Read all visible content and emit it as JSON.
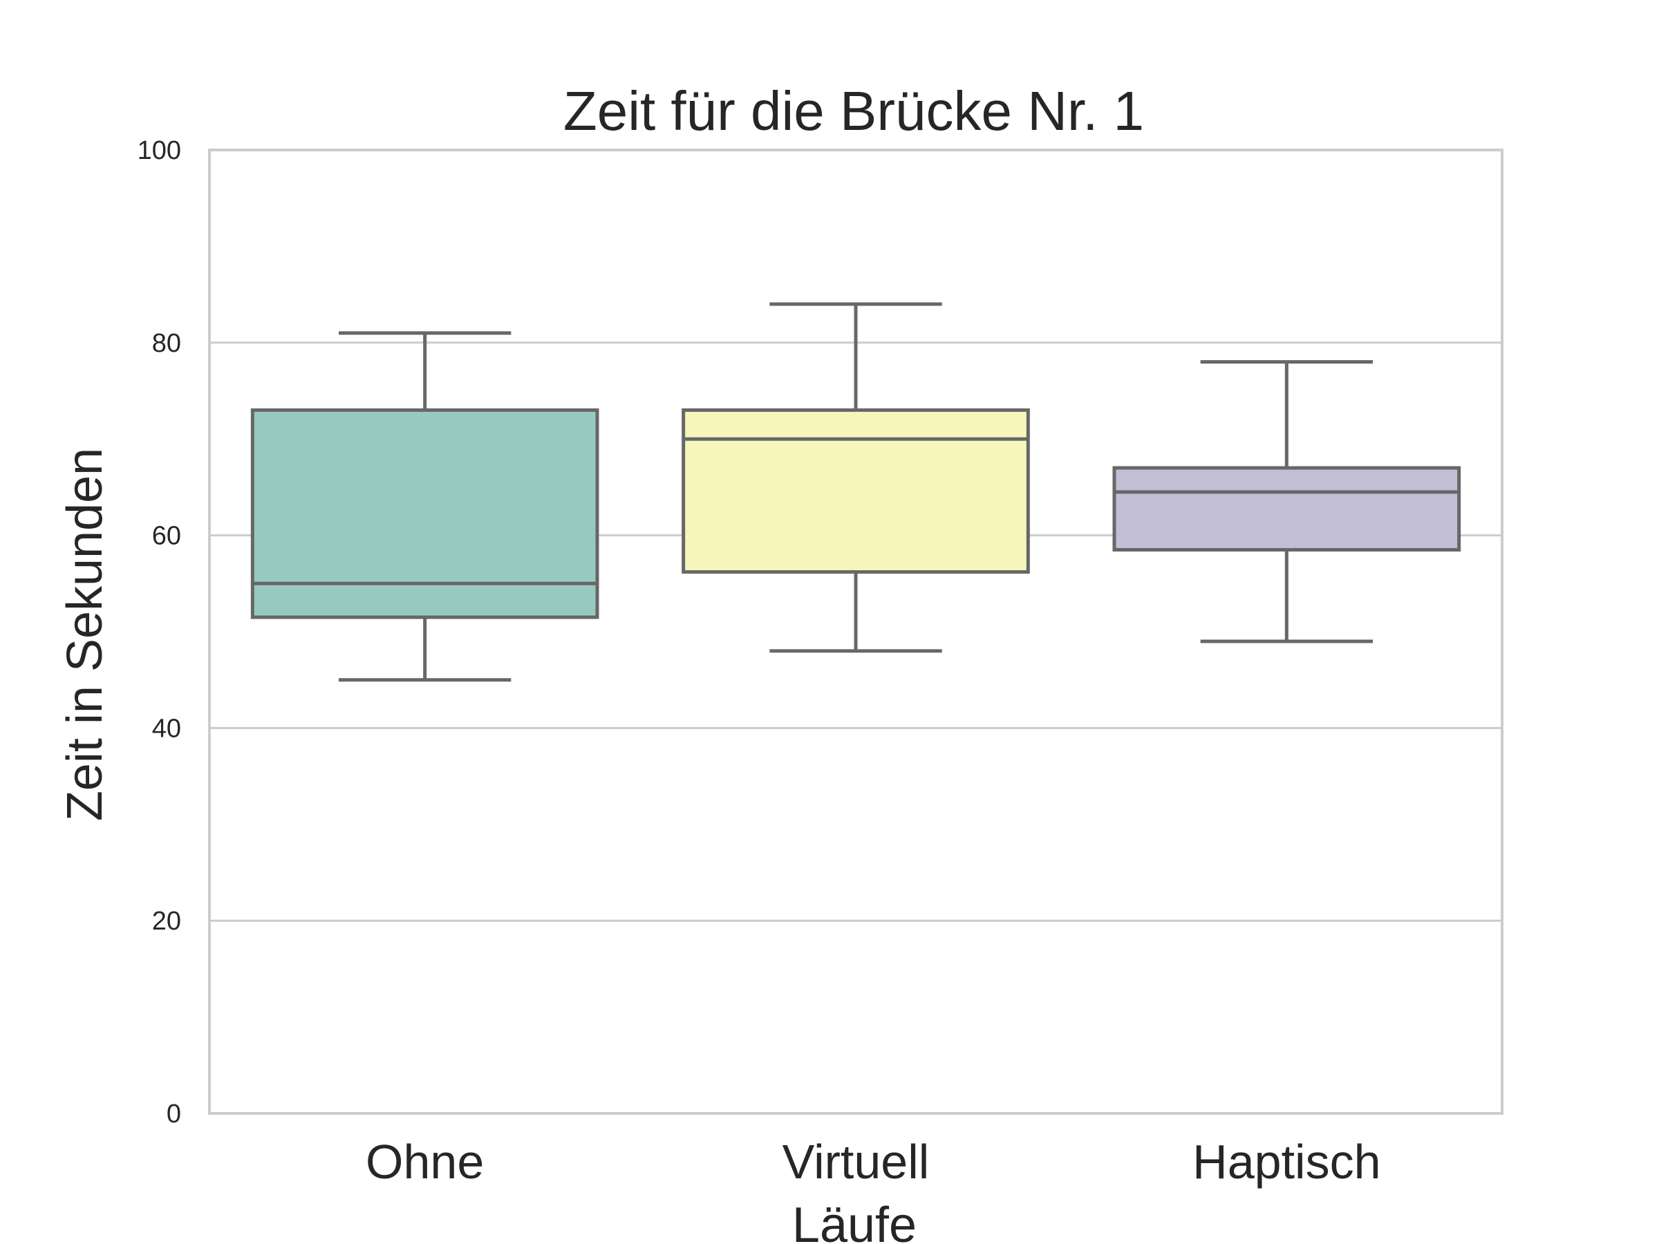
{
  "chart_data": {
    "type": "box",
    "title": "Zeit für die Brücke Nr. 1",
    "xlabel": "Läufe",
    "ylabel": "Zeit in Sekunden",
    "ylim": [
      0,
      100
    ],
    "yticks": [
      "0",
      "20",
      "40",
      "60",
      "80",
      "100"
    ],
    "grid": "horizontal",
    "categories": [
      "Ohne",
      "Virtuell",
      "Haptisch"
    ],
    "boxes": [
      {
        "category": "Ohne",
        "whisker_low": 45,
        "q1": 51.5,
        "median": 55,
        "q3": 73,
        "whisker_high": 81,
        "color": "#96cac1"
      },
      {
        "category": "Virtuell",
        "whisker_low": 48,
        "q1": 56.2,
        "median": 70,
        "q3": 73,
        "whisker_high": 84,
        "color": "#f6f6bc"
      },
      {
        "category": "Haptisch",
        "whisker_low": 49,
        "q1": 58.5,
        "median": 64.5,
        "q3": 67,
        "whisker_high": 78,
        "color": "#c1bed6"
      }
    ],
    "line_color": "#676767",
    "grid_color": "#cccccc"
  }
}
